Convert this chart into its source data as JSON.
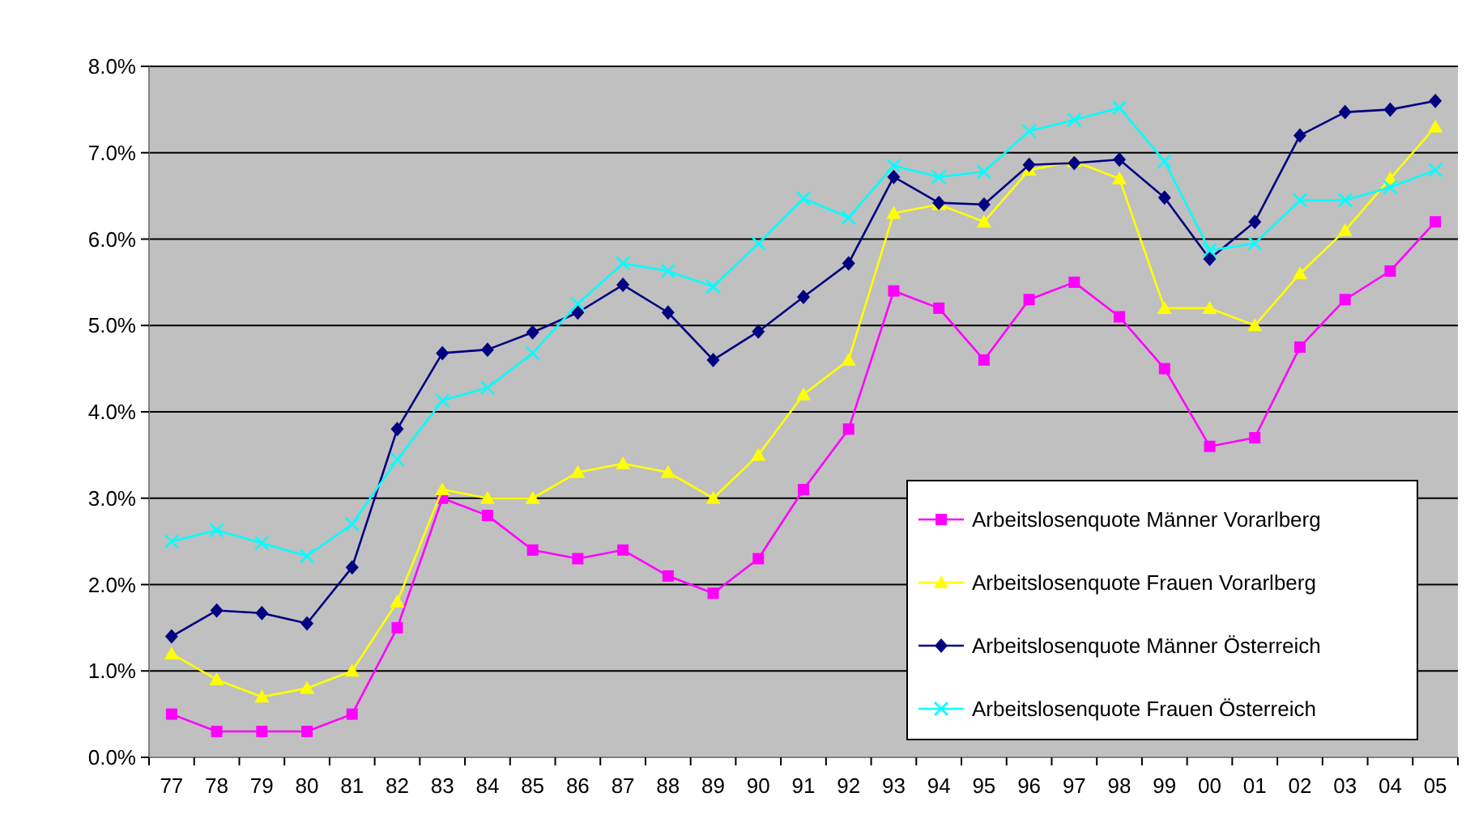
{
  "chart_data": {
    "type": "line",
    "categories": [
      "77",
      "78",
      "79",
      "80",
      "81",
      "82",
      "83",
      "84",
      "85",
      "86",
      "87",
      "88",
      "89",
      "90",
      "91",
      "92",
      "93",
      "94",
      "95",
      "96",
      "97",
      "98",
      "99",
      "00",
      "01",
      "02",
      "03",
      "04",
      "05"
    ],
    "series": [
      {
        "name": "Arbeitslosenquote Männer Vorarlberg",
        "color": "#ff00ff",
        "marker": "square",
        "values": [
          0.5,
          0.3,
          0.3,
          0.3,
          0.5,
          1.5,
          3.0,
          2.8,
          2.4,
          2.3,
          2.4,
          2.1,
          1.9,
          2.3,
          3.1,
          3.8,
          5.4,
          5.2,
          4.6,
          5.3,
          5.5,
          5.1,
          4.5,
          3.6,
          3.7,
          4.75,
          5.3,
          5.63,
          6.2
        ]
      },
      {
        "name": "Arbeitslosenquote Frauen Vorarlberg",
        "color": "#ffff00",
        "marker": "triangle",
        "values": [
          1.2,
          0.9,
          0.7,
          0.8,
          1.0,
          1.8,
          3.1,
          3.0,
          3.0,
          3.3,
          3.4,
          3.3,
          3.0,
          3.5,
          4.2,
          4.6,
          6.3,
          6.4,
          6.2,
          6.8,
          6.9,
          6.7,
          5.2,
          5.2,
          5.0,
          5.6,
          6.1,
          6.7,
          7.3
        ]
      },
      {
        "name": "Arbeitslosenquote Männer Österreich",
        "color": "#000080",
        "marker": "diamond",
        "values": [
          1.4,
          1.7,
          1.67,
          1.55,
          2.2,
          3.8,
          4.68,
          4.72,
          4.92,
          5.15,
          5.47,
          5.15,
          4.6,
          4.93,
          5.33,
          5.72,
          6.72,
          6.42,
          6.4,
          6.86,
          6.88,
          6.92,
          6.48,
          5.77,
          6.2,
          7.2,
          7.47,
          7.5,
          7.6
        ]
      },
      {
        "name": "Arbeitslosenquote Frauen Österreich",
        "color": "#00ffff",
        "marker": "cross",
        "values": [
          2.5,
          2.63,
          2.48,
          2.33,
          2.7,
          3.45,
          4.13,
          4.28,
          4.68,
          5.25,
          5.72,
          5.63,
          5.45,
          5.95,
          6.47,
          6.25,
          6.85,
          6.72,
          6.78,
          7.25,
          7.38,
          7.52,
          6.9,
          5.87,
          5.95,
          6.45,
          6.45,
          6.6,
          6.8
        ]
      }
    ],
    "ylim": [
      0,
      8
    ],
    "yticks": [
      {
        "value": 0,
        "label": "0.0%"
      },
      {
        "value": 1,
        "label": "1.0%"
      },
      {
        "value": 2,
        "label": "2.0%"
      },
      {
        "value": 3,
        "label": "3.0%"
      },
      {
        "value": 4,
        "label": "4.0%"
      },
      {
        "value": 5,
        "label": "5.0%"
      },
      {
        "value": 6,
        "label": "6.0%"
      },
      {
        "value": 7,
        "label": "7.0%"
      },
      {
        "value": 8,
        "label": "8.0%"
      }
    ],
    "grid": "y",
    "legend": "bottom right"
  }
}
